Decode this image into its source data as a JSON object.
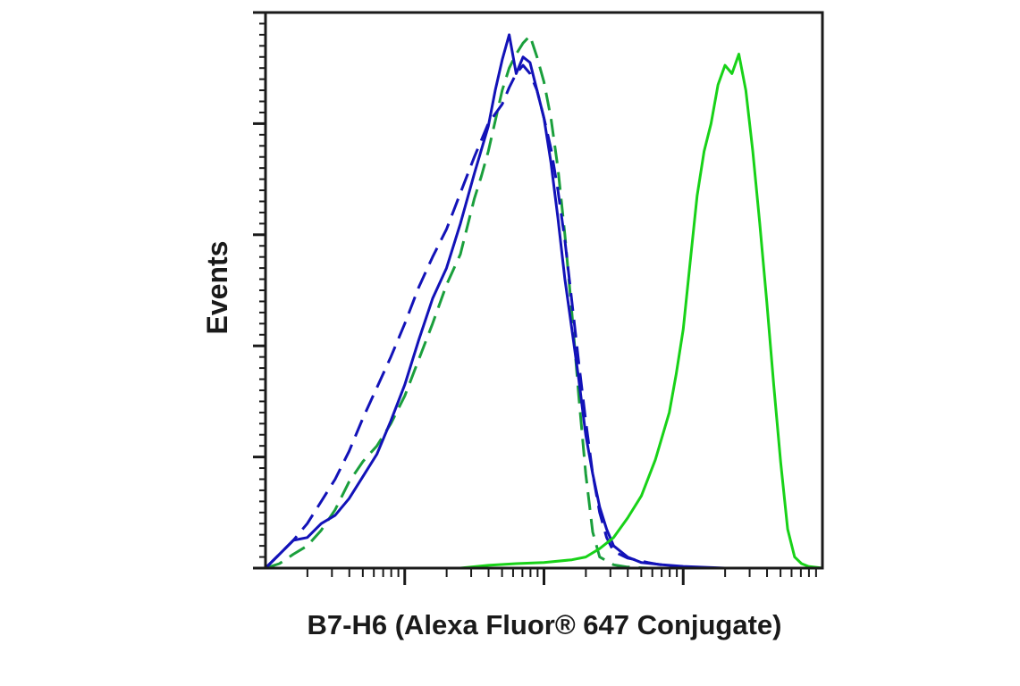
{
  "chart_data": {
    "type": "line",
    "xlabel": "B7-H6 (Alexa Fluor® 647 Conjugate)",
    "ylabel": "Events",
    "x_scale": "log",
    "x_decades": 4,
    "ylim": [
      0,
      100
    ],
    "y_major_ticks": [
      0,
      20,
      40,
      60,
      80,
      100
    ],
    "grid": false,
    "legend": "none",
    "series": [
      {
        "color": "#1a9f3c",
        "dashed": true,
        "points": [
          [
            0.0,
            0.0
          ],
          [
            0.1,
            0.8
          ],
          [
            0.2,
            2.5
          ],
          [
            0.3,
            4.0
          ],
          [
            0.4,
            6.8
          ],
          [
            0.5,
            10.5
          ],
          [
            0.6,
            15.5
          ],
          [
            0.7,
            19.2
          ],
          [
            0.8,
            22.0
          ],
          [
            0.9,
            26.0
          ],
          [
            1.0,
            31.0
          ],
          [
            1.1,
            37.5
          ],
          [
            1.2,
            44.0
          ],
          [
            1.3,
            51.0
          ],
          [
            1.4,
            56.5
          ],
          [
            1.45,
            61.5
          ],
          [
            1.5,
            66.5
          ],
          [
            1.55,
            70.5
          ],
          [
            1.6,
            75.0
          ],
          [
            1.65,
            80.5
          ],
          [
            1.7,
            86.0
          ],
          [
            1.75,
            90.0
          ],
          [
            1.8,
            92.5
          ],
          [
            1.85,
            94.5
          ],
          [
            1.9,
            95.8
          ],
          [
            1.95,
            92.0
          ],
          [
            2.0,
            87.5
          ],
          [
            2.05,
            81.0
          ],
          [
            2.1,
            72.0
          ],
          [
            2.15,
            60.0
          ],
          [
            2.2,
            46.0
          ],
          [
            2.25,
            31.0
          ],
          [
            2.3,
            17.0
          ],
          [
            2.35,
            6.5
          ],
          [
            2.4,
            2.0
          ],
          [
            2.5,
            0.6
          ],
          [
            2.6,
            0.2
          ],
          [
            2.75,
            0.0
          ],
          [
            4.0,
            0.0
          ]
        ]
      },
      {
        "color": "#1212b8",
        "dashed": true,
        "points": [
          [
            0.0,
            0.0
          ],
          [
            0.1,
            2.5
          ],
          [
            0.2,
            5.0
          ],
          [
            0.3,
            8.0
          ],
          [
            0.4,
            12.0
          ],
          [
            0.5,
            16.0
          ],
          [
            0.6,
            21.0
          ],
          [
            0.7,
            27.0
          ],
          [
            0.8,
            32.5
          ],
          [
            0.9,
            38.0
          ],
          [
            1.0,
            44.0
          ],
          [
            1.1,
            50.5
          ],
          [
            1.2,
            56.0
          ],
          [
            1.3,
            61.0
          ],
          [
            1.4,
            67.5
          ],
          [
            1.5,
            74.0
          ],
          [
            1.6,
            80.0
          ],
          [
            1.7,
            83.5
          ],
          [
            1.75,
            86.5
          ],
          [
            1.8,
            89.0
          ],
          [
            1.85,
            90.5
          ],
          [
            1.9,
            89.0
          ],
          [
            1.95,
            86.0
          ],
          [
            2.0,
            81.0
          ],
          [
            2.05,
            75.5
          ],
          [
            2.1,
            68.0
          ],
          [
            2.15,
            59.0
          ],
          [
            2.2,
            48.0
          ],
          [
            2.25,
            37.0
          ],
          [
            2.3,
            26.5
          ],
          [
            2.35,
            17.0
          ],
          [
            2.4,
            10.0
          ],
          [
            2.45,
            5.5
          ],
          [
            2.5,
            3.0
          ],
          [
            2.6,
            1.8
          ],
          [
            2.75,
            1.0
          ],
          [
            2.9,
            0.3
          ],
          [
            3.0,
            0.0
          ],
          [
            4.0,
            0.0
          ]
        ]
      },
      {
        "color": "#1212b8",
        "dashed": false,
        "points": [
          [
            0.0,
            0.0
          ],
          [
            0.1,
            2.5
          ],
          [
            0.2,
            5.0
          ],
          [
            0.3,
            5.5
          ],
          [
            0.4,
            8.0
          ],
          [
            0.5,
            9.5
          ],
          [
            0.6,
            12.5
          ],
          [
            0.7,
            16.5
          ],
          [
            0.8,
            20.5
          ],
          [
            0.9,
            26.5
          ],
          [
            1.0,
            33.0
          ],
          [
            1.1,
            41.0
          ],
          [
            1.2,
            48.5
          ],
          [
            1.3,
            54.0
          ],
          [
            1.4,
            62.0
          ],
          [
            1.5,
            71.0
          ],
          [
            1.6,
            79.5
          ],
          [
            1.65,
            86.0
          ],
          [
            1.7,
            91.5
          ],
          [
            1.75,
            96.0
          ],
          [
            1.8,
            89.0
          ],
          [
            1.85,
            92.0
          ],
          [
            1.9,
            91.0
          ],
          [
            1.95,
            86.0
          ],
          [
            2.0,
            81.0
          ],
          [
            2.05,
            73.0
          ],
          [
            2.1,
            63.0
          ],
          [
            2.15,
            52.0
          ],
          [
            2.2,
            43.0
          ],
          [
            2.25,
            34.0
          ],
          [
            2.3,
            24.0
          ],
          [
            2.35,
            17.0
          ],
          [
            2.4,
            11.0
          ],
          [
            2.45,
            7.0
          ],
          [
            2.5,
            4.0
          ],
          [
            2.6,
            2.0
          ],
          [
            2.7,
            1.0
          ],
          [
            2.85,
            0.6
          ],
          [
            3.0,
            0.3
          ],
          [
            3.3,
            0.0
          ],
          [
            4.0,
            0.0
          ]
        ]
      },
      {
        "color": "#18d218",
        "dashed": false,
        "points": [
          [
            0.0,
            0.0
          ],
          [
            1.4,
            0.0
          ],
          [
            1.6,
            0.5
          ],
          [
            1.8,
            0.8
          ],
          [
            2.0,
            1.0
          ],
          [
            2.2,
            1.5
          ],
          [
            2.3,
            2.0
          ],
          [
            2.4,
            3.5
          ],
          [
            2.5,
            5.5
          ],
          [
            2.6,
            9.0
          ],
          [
            2.7,
            13.0
          ],
          [
            2.8,
            19.5
          ],
          [
            2.9,
            28.0
          ],
          [
            2.95,
            35.0
          ],
          [
            3.0,
            43.0
          ],
          [
            3.05,
            55.0
          ],
          [
            3.1,
            67.0
          ],
          [
            3.15,
            75.0
          ],
          [
            3.2,
            80.0
          ],
          [
            3.25,
            87.0
          ],
          [
            3.3,
            90.5
          ],
          [
            3.35,
            89.0
          ],
          [
            3.4,
            92.5
          ],
          [
            3.45,
            86.0
          ],
          [
            3.5,
            75.0
          ],
          [
            3.55,
            62.0
          ],
          [
            3.6,
            48.0
          ],
          [
            3.65,
            33.0
          ],
          [
            3.7,
            19.0
          ],
          [
            3.75,
            7.0
          ],
          [
            3.8,
            2.0
          ],
          [
            3.85,
            0.8
          ],
          [
            3.9,
            0.3
          ],
          [
            4.0,
            0.0
          ]
        ]
      }
    ]
  }
}
